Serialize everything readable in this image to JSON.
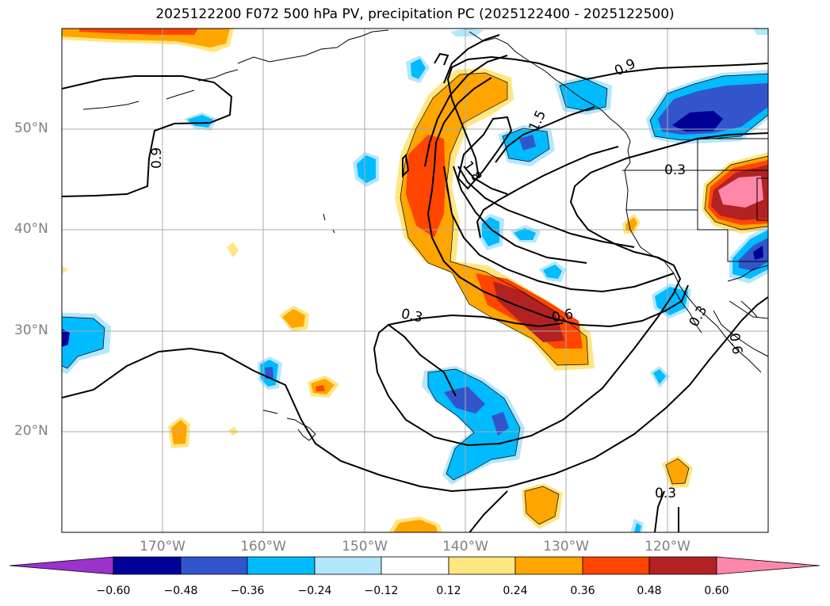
{
  "title": "2025122200 F072 500 hPa PV, precipitation PC (2025122400 - 2025122500)",
  "lat_labels": [
    "50°N",
    "40°N",
    "30°N",
    "20°N"
  ],
  "lon_labels": [
    "170°W",
    "160°W",
    "150°W",
    "140°W",
    "130°W",
    "120°W"
  ],
  "contour_labels": [
    "0.9",
    "1.8",
    "1.5",
    "0.9",
    "0.3",
    "0.3",
    "0.6",
    "0.3",
    "0.6",
    "0.3"
  ],
  "colorbar": {
    "tick_labels": [
      "−0.60",
      "−0.48",
      "−0.36",
      "−0.24",
      "−0.12",
      "0.12",
      "0.24",
      "0.36",
      "0.48",
      "0.60"
    ],
    "colors": [
      "#9933cc",
      "#000099",
      "#3355cc",
      "#00bbff",
      "#b3e6ff",
      "#ffffff",
      "#ffe680",
      "#ffa500",
      "#ff4500",
      "#b22222",
      "#ff88aa"
    ]
  }
}
